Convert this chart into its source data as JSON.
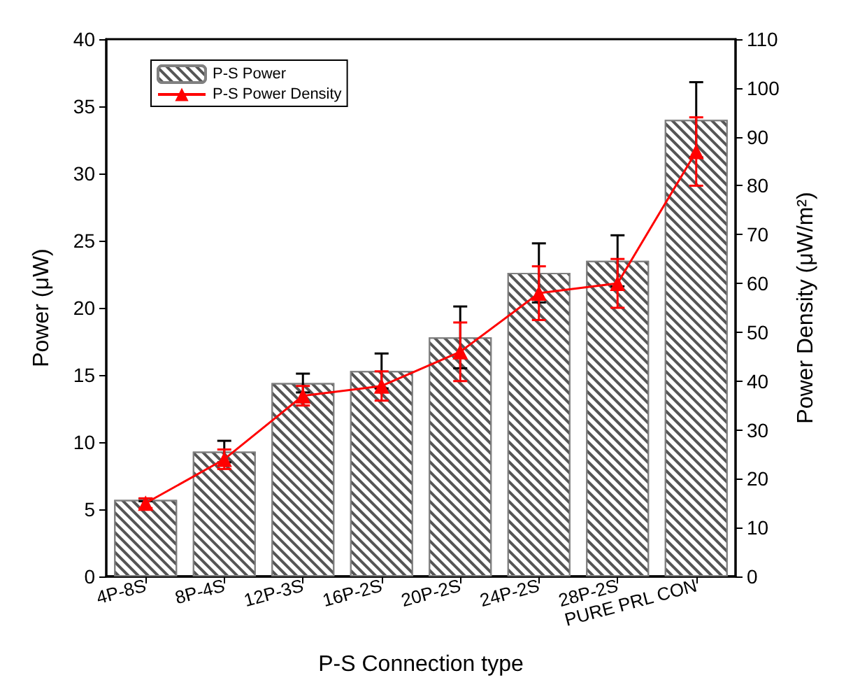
{
  "chart_data": {
    "type": "bar",
    "xlabel": "P-S Connection type",
    "ylabel": "Power (μW)",
    "y2label": "Power Density (μW/m²)",
    "categories": [
      "4P-8S",
      "8P-4S",
      "12P-3S",
      "16P-2S",
      "20P-2S",
      "24P-2S",
      "28P-2S",
      "PURE PRL CON"
    ],
    "series": [
      {
        "name": "P-S Power",
        "color": "#808080",
        "values": [
          5.7,
          9.3,
          14.4,
          15.3,
          17.8,
          22.6,
          23.5,
          34.0
        ],
        "errors": [
          0.1,
          0.8,
          0.7,
          1.3,
          2.3,
          2.2,
          1.9,
          2.8
        ]
      },
      {
        "name": "P-S Power Density",
        "type": "line",
        "axis": "y2",
        "color": "#ff0000",
        "marker": "triangle",
        "values": [
          15,
          24,
          37,
          39,
          46,
          58,
          60,
          87
        ],
        "errors": [
          1,
          2,
          2,
          3,
          6,
          5.5,
          5,
          7
        ]
      }
    ],
    "ylim": [
      0,
      40
    ],
    "yticks": [
      0,
      5,
      10,
      15,
      20,
      25,
      30,
      35,
      40
    ],
    "y2lim": [
      0,
      110
    ],
    "y2ticks": [
      0,
      10,
      20,
      30,
      40,
      50,
      60,
      70,
      80,
      90,
      100,
      110
    ],
    "grid": false,
    "legend": "top left"
  }
}
